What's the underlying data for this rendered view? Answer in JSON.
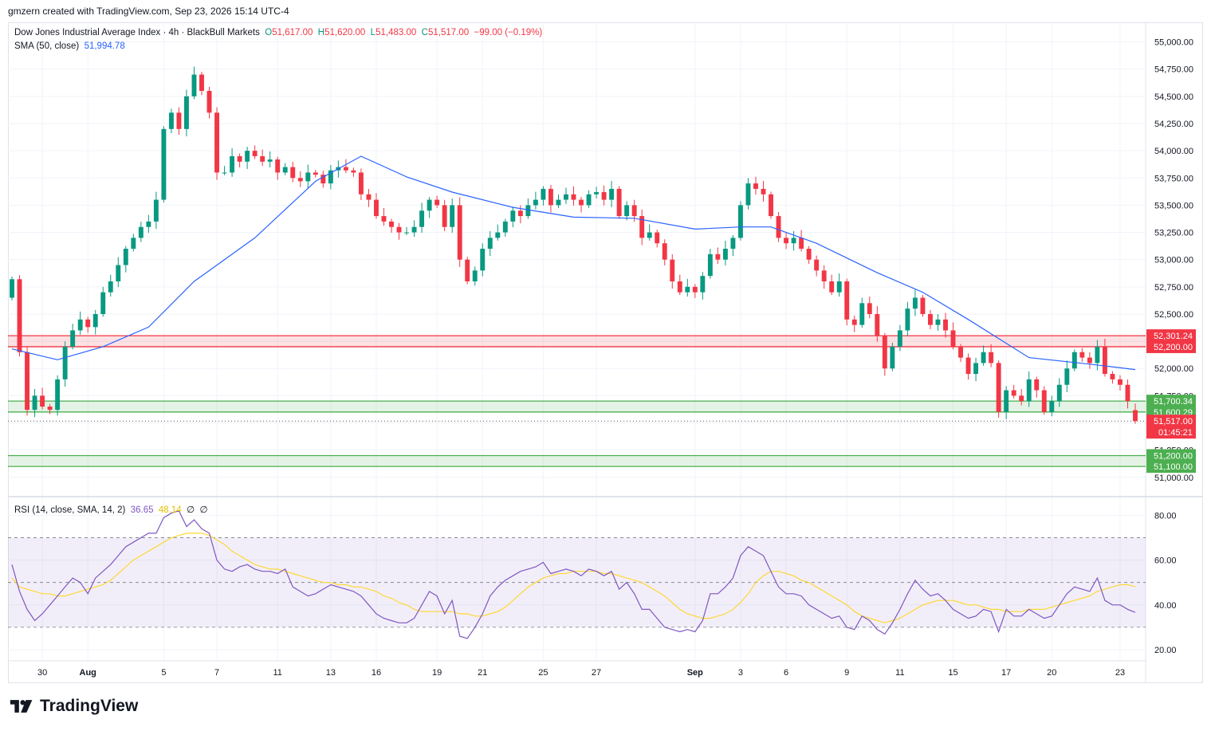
{
  "header": {
    "credit": "gmzern created with TradingView.com, Sep 23, 2026 15:14 UTC-4"
  },
  "legend": {
    "symbol": "Dow Jones Industrial Average Index · 4h · BlackBull Markets",
    "o_label": "O",
    "o": "51,617.00",
    "h_label": "H",
    "h": "51,620.00",
    "l_label": "L",
    "l": "51,483.00",
    "c_label": "C",
    "c": "51,517.00",
    "change": "−99.00 (−0.19%)",
    "sma_label": "SMA (50, close)",
    "sma_value": "51,994.78",
    "rsi_label": "RSI (14, close, SMA, 14, 2)",
    "rsi_value": "36.65",
    "rsi_ma_value": "48.14",
    "rsi_extra1": "∅",
    "rsi_extra2": "∅"
  },
  "brand": {
    "name": "TradingView"
  },
  "colors": {
    "up": "#089981",
    "down": "#f23645",
    "sma": "#2962ff",
    "rsi": "#7e57c2",
    "rsi_ma": "#fdd835",
    "resistance_zone": "#f23645",
    "support_zone": "#4caf50"
  },
  "chart_data": [
    {
      "type": "candlestick",
      "title": "Dow Jones Industrial Average Index · 4h · BlackBull Markets",
      "ylim": [
        50830,
        55180
      ],
      "y_ticks": [
        "55,000.00",
        "54,750.00",
        "54,500.00",
        "54,250.00",
        "54,000.00",
        "53,750.00",
        "53,500.00",
        "53,250.00",
        "53,000.00",
        "52,750.00",
        "52,500.00",
        "52,250.00",
        "52,000.00",
        "51,750.00",
        "51,500.00",
        "51,250.00",
        "51,000.00"
      ],
      "y_tick_values": [
        55000,
        54750,
        54500,
        54250,
        54000,
        53750,
        53500,
        53250,
        53000,
        52750,
        52500,
        52250,
        52000,
        51750,
        51500,
        51250,
        51000
      ],
      "x_labels": [
        {
          "label": "30",
          "bar": 4
        },
        {
          "label": "Aug",
          "bar": 10,
          "bold": true
        },
        {
          "label": "5",
          "bar": 20
        },
        {
          "label": "7",
          "bar": 27
        },
        {
          "label": "11",
          "bar": 35
        },
        {
          "label": "13",
          "bar": 42
        },
        {
          "label": "16",
          "bar": 48
        },
        {
          "label": "19",
          "bar": 56
        },
        {
          "label": "21",
          "bar": 62
        },
        {
          "label": "25",
          "bar": 70
        },
        {
          "label": "27",
          "bar": 77
        },
        {
          "label": "Sep",
          "bar": 90,
          "bold": true
        },
        {
          "label": "3",
          "bar": 96
        },
        {
          "label": "6",
          "bar": 102
        },
        {
          "label": "9",
          "bar": 110
        },
        {
          "label": "11",
          "bar": 117
        },
        {
          "label": "15",
          "bar": 124
        },
        {
          "label": "17",
          "bar": 131
        },
        {
          "label": "20",
          "bar": 137
        },
        {
          "label": "23",
          "bar": 146
        }
      ],
      "close": [
        52820,
        52150,
        51620,
        51750,
        51650,
        51620,
        51900,
        52200,
        52350,
        52450,
        52380,
        52500,
        52700,
        52800,
        52950,
        53100,
        53200,
        53300,
        53350,
        53550,
        54200,
        54350,
        54200,
        54500,
        54700,
        54550,
        54350,
        53800,
        53800,
        53950,
        53900,
        54000,
        53950,
        53900,
        53920,
        53800,
        53850,
        53750,
        53720,
        53800,
        53780,
        53700,
        53820,
        53850,
        53820,
        53800,
        53600,
        53550,
        53400,
        53350,
        53300,
        53250,
        53250,
        53300,
        53450,
        53550,
        53500,
        53300,
        53500,
        53000,
        52800,
        52900,
        53100,
        53200,
        53250,
        53350,
        53450,
        53400,
        53500,
        53550,
        53650,
        53500,
        53550,
        53600,
        53550,
        53500,
        53600,
        53620,
        53550,
        53650,
        53400,
        53500,
        53400,
        53200,
        53250,
        53150,
        53000,
        52800,
        52700,
        52750,
        52700,
        52850,
        53050,
        53000,
        53100,
        53200,
        53500,
        53700,
        53650,
        53600,
        53400,
        53200,
        53150,
        53200,
        53100,
        53000,
        52900,
        52800,
        52700,
        52800,
        52450,
        52400,
        52600,
        52500,
        52300,
        52000,
        52200,
        52350,
        52550,
        52650,
        52500,
        52400,
        52450,
        52350,
        52200,
        52100,
        51950,
        52050,
        52150,
        52050,
        51600,
        51800,
        51750,
        51700,
        51900,
        51800,
        51600,
        51700,
        51850,
        52000,
        52150,
        52100,
        52050,
        52200,
        51950,
        51900,
        51850,
        51700,
        51517
      ],
      "open": [
        52650,
        52820,
        52150,
        51620,
        51750,
        51650,
        51620,
        51900,
        52200,
        52350,
        52450,
        52380,
        52500,
        52700,
        52800,
        52950,
        53100,
        53200,
        53300,
        53350,
        53550,
        54200,
        54350,
        54200,
        54500,
        54700,
        54550,
        54350,
        53800,
        53800,
        53950,
        53900,
        54000,
        53950,
        53900,
        53920,
        53800,
        53850,
        53750,
        53720,
        53800,
        53780,
        53700,
        53820,
        53850,
        53820,
        53800,
        53600,
        53550,
        53400,
        53350,
        53300,
        53250,
        53250,
        53300,
        53450,
        53550,
        53500,
        53300,
        53500,
        53000,
        52800,
        52900,
        53100,
        53200,
        53250,
        53350,
        53450,
        53400,
        53500,
        53550,
        53650,
        53500,
        53550,
        53600,
        53550,
        53500,
        53600,
        53620,
        53550,
        53650,
        53400,
        53500,
        53400,
        53200,
        53250,
        53150,
        53000,
        52800,
        52700,
        52750,
        52700,
        52850,
        53050,
        53000,
        53100,
        53200,
        53500,
        53700,
        53650,
        53600,
        53400,
        53200,
        53150,
        53200,
        53100,
        53000,
        52900,
        52800,
        52700,
        52800,
        52450,
        52400,
        52600,
        52500,
        52300,
        52000,
        52200,
        52350,
        52550,
        52650,
        52500,
        52400,
        52450,
        52350,
        52200,
        52100,
        51950,
        52050,
        52150,
        52050,
        51600,
        51800,
        51750,
        51700,
        51900,
        51800,
        51600,
        51700,
        51850,
        52000,
        52150,
        52100,
        52050,
        52200,
        51950,
        51900,
        51850,
        51617
      ],
      "sma": [
        [
          0,
          52180
        ],
        [
          6,
          52080
        ],
        [
          12,
          52200
        ],
        [
          18,
          52380
        ],
        [
          24,
          52800
        ],
        [
          32,
          53200
        ],
        [
          40,
          53720
        ],
        [
          46,
          53950
        ],
        [
          52,
          53760
        ],
        [
          58,
          53620
        ],
        [
          66,
          53480
        ],
        [
          74,
          53390
        ],
        [
          82,
          53380
        ],
        [
          90,
          53280
        ],
        [
          96,
          53300
        ],
        [
          100,
          53300
        ],
        [
          106,
          53150
        ],
        [
          114,
          52880
        ],
        [
          120,
          52700
        ],
        [
          126,
          52450
        ],
        [
          134,
          52100
        ],
        [
          142,
          52040
        ],
        [
          148,
          51990
        ]
      ],
      "levels": [
        {
          "label": "52,301.24",
          "value": 52301.24,
          "color": "#f23645"
        },
        {
          "label": "52,200.00",
          "value": 52200,
          "color": "#f23645"
        },
        {
          "label": "51,700.34",
          "value": 51700.34,
          "color": "#4caf50"
        },
        {
          "label": "51,600.29",
          "value": 51600.29,
          "color": "#4caf50"
        },
        {
          "label": "51,200.00",
          "value": 51200,
          "color": "#4caf50"
        },
        {
          "label": "51,100.00",
          "value": 51100,
          "color": "#4caf50"
        }
      ],
      "last_price": {
        "label": "51,517.00",
        "countdown": "01:45:21",
        "value": 51517
      }
    },
    {
      "type": "line",
      "title": "RSI (14, close, SMA, 14, 2)",
      "ylim": [
        15,
        88
      ],
      "y_ticks": [
        "80.00",
        "60.00",
        "40.00",
        "20.00"
      ],
      "y_tick_values": [
        80,
        60,
        40,
        20
      ],
      "bands": [
        70,
        50,
        30
      ],
      "rsi": [
        58,
        46,
        38,
        33,
        36,
        40,
        44,
        48,
        52,
        50,
        45,
        52,
        55,
        58,
        62,
        66,
        68,
        70,
        72,
        72,
        79,
        81,
        82,
        75,
        78,
        74,
        72,
        60,
        56,
        55,
        57,
        58,
        56,
        55,
        55,
        54,
        56,
        48,
        46,
        44,
        45,
        47,
        49,
        48,
        47,
        46,
        44,
        40,
        36,
        34,
        33,
        32,
        32,
        34,
        40,
        46,
        44,
        36,
        42,
        26,
        25,
        30,
        36,
        44,
        48,
        51,
        53,
        55,
        56,
        57,
        59,
        54,
        55,
        56,
        55,
        53,
        56,
        55,
        53,
        55,
        47,
        50,
        45,
        38,
        38,
        34,
        30,
        29,
        28,
        29,
        28,
        33,
        45,
        45,
        48,
        52,
        62,
        66,
        64,
        62,
        55,
        48,
        45,
        45,
        44,
        40,
        38,
        36,
        34,
        35,
        30,
        29,
        35,
        33,
        29,
        27,
        32,
        38,
        45,
        51,
        47,
        44,
        45,
        42,
        38,
        36,
        34,
        35,
        38,
        37,
        28,
        38,
        35,
        35,
        38,
        36,
        34,
        35,
        40,
        45,
        48,
        47,
        46,
        52,
        42,
        40,
        40,
        38,
        36.65
      ],
      "ma": [
        52,
        48,
        47,
        46,
        45,
        45,
        44,
        44,
        45,
        46,
        47,
        48,
        49,
        51,
        54,
        57,
        60,
        62,
        64,
        66,
        68,
        70,
        71,
        72,
        72,
        72,
        71,
        69,
        67,
        64,
        62,
        60,
        58,
        57,
        56,
        56,
        55,
        54,
        53,
        52,
        51,
        50,
        50,
        49,
        49,
        48,
        48,
        47,
        46,
        44,
        43,
        41,
        40,
        38,
        37,
        37,
        37,
        37,
        37,
        36,
        36,
        35,
        35,
        36,
        37,
        39,
        42,
        45,
        48,
        50,
        52,
        53,
        54,
        54,
        55,
        55,
        55,
        55,
        54,
        54,
        53,
        52,
        51,
        50,
        48,
        46,
        44,
        41,
        38,
        36,
        35,
        34,
        34,
        35,
        36,
        38,
        41,
        45,
        50,
        53,
        55,
        55,
        54,
        53,
        51,
        50,
        48,
        46,
        44,
        42,
        40,
        37,
        35,
        34,
        33,
        32,
        33,
        34,
        36,
        38,
        40,
        41,
        42,
        42,
        42,
        41,
        40,
        40,
        39,
        38,
        38,
        37,
        37,
        37,
        38,
        38,
        38,
        39,
        40,
        41,
        42,
        43,
        44,
        46,
        47,
        48,
        49,
        49,
        48.14
      ]
    }
  ]
}
